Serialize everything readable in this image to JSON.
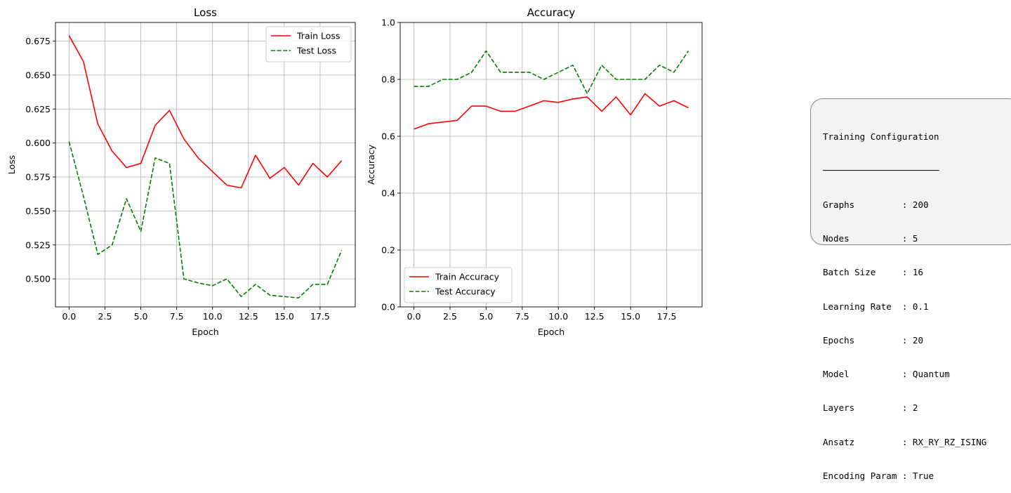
{
  "chart_data": [
    {
      "type": "line",
      "title": "Loss",
      "xlabel": "Epoch",
      "ylabel": "Loss",
      "x": [
        0,
        1,
        2,
        3,
        4,
        5,
        6,
        7,
        8,
        9,
        10,
        11,
        12,
        13,
        14,
        15,
        16,
        17,
        18,
        19
      ],
      "xlim": [
        -0.95,
        19.95
      ],
      "ylim": [
        0.4794,
        0.6887
      ],
      "xticks": [
        0.0,
        2.5,
        5.0,
        7.5,
        10.0,
        12.5,
        15.0,
        17.5
      ],
      "xtick_labels": [
        "0.0",
        "2.5",
        "5.0",
        "7.5",
        "10.0",
        "12.5",
        "15.0",
        "17.5"
      ],
      "yticks": [
        0.5,
        0.525,
        0.55,
        0.575,
        0.6,
        0.625,
        0.65,
        0.675
      ],
      "ytick_labels": [
        "0.500",
        "0.525",
        "0.550",
        "0.575",
        "0.600",
        "0.625",
        "0.650",
        "0.675"
      ],
      "grid": true,
      "legend_position": "top-right",
      "series": [
        {
          "name": "Train Loss",
          "color": "#ff0000",
          "style": "solid",
          "values": [
            0.679,
            0.66,
            0.614,
            0.594,
            0.582,
            0.585,
            0.613,
            0.624,
            0.603,
            0.589,
            0.579,
            0.569,
            0.567,
            0.591,
            0.574,
            0.582,
            0.569,
            0.585,
            0.575,
            0.587
          ]
        },
        {
          "name": "Test Loss",
          "color": "#008000",
          "style": "dashed",
          "values": [
            0.601,
            0.561,
            0.518,
            0.525,
            0.559,
            0.535,
            0.589,
            0.585,
            0.5,
            0.497,
            0.495,
            0.5,
            0.487,
            0.496,
            0.488,
            0.487,
            0.486,
            0.496,
            0.496,
            0.521
          ]
        }
      ]
    },
    {
      "type": "line",
      "title": "Accuracy",
      "xlabel": "Epoch",
      "ylabel": "Accuracy",
      "x": [
        0,
        1,
        2,
        3,
        4,
        5,
        6,
        7,
        8,
        9,
        10,
        11,
        12,
        13,
        14,
        15,
        16,
        17,
        18,
        19
      ],
      "xlim": [
        -0.95,
        19.95
      ],
      "ylim": [
        0.0,
        1.0
      ],
      "xticks": [
        0.0,
        2.5,
        5.0,
        7.5,
        10.0,
        12.5,
        15.0,
        17.5
      ],
      "xtick_labels": [
        "0.0",
        "2.5",
        "5.0",
        "7.5",
        "10.0",
        "12.5",
        "15.0",
        "17.5"
      ],
      "yticks": [
        0.0,
        0.2,
        0.4,
        0.6,
        0.8,
        1.0
      ],
      "ytick_labels": [
        "0.0",
        "0.2",
        "0.4",
        "0.6",
        "0.8",
        "1.0"
      ],
      "grid": true,
      "legend_position": "bottom-left",
      "series": [
        {
          "name": "Train Accuracy",
          "color": "#ff0000",
          "style": "solid",
          "values": [
            0.625,
            0.644,
            0.65,
            0.656,
            0.706,
            0.706,
            0.688,
            0.688,
            0.706,
            0.725,
            0.719,
            0.731,
            0.738,
            0.688,
            0.738,
            0.675,
            0.75,
            0.706,
            0.725,
            0.7
          ]
        },
        {
          "name": "Test Accuracy",
          "color": "#008000",
          "style": "dashed",
          "values": [
            0.775,
            0.775,
            0.8,
            0.8,
            0.825,
            0.9,
            0.825,
            0.825,
            0.825,
            0.8,
            0.825,
            0.85,
            0.75,
            0.85,
            0.8,
            0.8,
            0.8,
            0.85,
            0.825,
            0.9
          ]
        }
      ]
    }
  ],
  "config": {
    "title": "Training Configuration",
    "separator": "──────────────────────",
    "rows": [
      "Graphs         : 200",
      "Nodes          : 5",
      "Batch Size     : 16",
      "Learning Rate  : 0.1",
      "Epochs         : 20",
      "Model          : Quantum",
      "Layers         : 2",
      "Ansatz         : RX_RY_RZ_ISING",
      "Encoding Param : True"
    ]
  }
}
